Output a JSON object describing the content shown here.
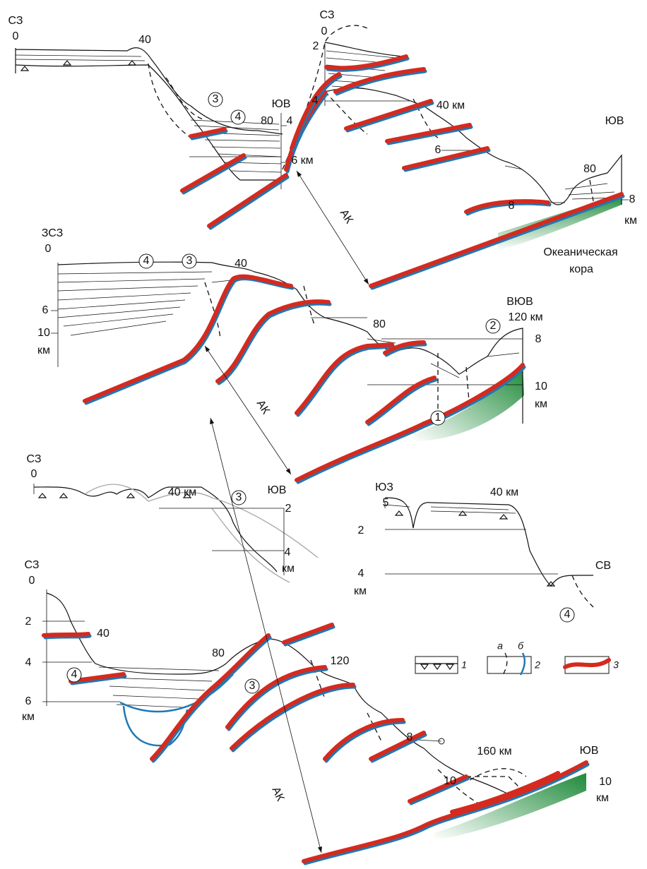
{
  "sections": [
    {
      "labels": [
        "СЗ",
        "0",
        "40",
        "3",
        "4",
        "ЮВ",
        "80",
        "4",
        "6 км"
      ]
    },
    {
      "labels": [
        "СЗ",
        "0",
        "2",
        "4",
        "40 км",
        "6",
        "8",
        "80",
        "ЮВ",
        "8",
        "км",
        "АК",
        "Океаническая",
        "кора"
      ]
    },
    {
      "labels": [
        "ЗСЗ",
        "0",
        "6",
        "10",
        "км",
        "4",
        "3",
        "40",
        "80",
        "ВЮВ",
        "120 км",
        "2",
        "8",
        "10",
        "км",
        "1",
        "АК"
      ]
    },
    {
      "labels": [
        "СЗ",
        "0",
        "40 км",
        "ЮВ",
        "3",
        "2",
        "4",
        "км"
      ]
    },
    {
      "labels": [
        "ЮЗ",
        "5",
        "40 км",
        "2",
        "4",
        "км",
        "СВ",
        "4"
      ]
    },
    {
      "labels": [
        "СЗ",
        "0",
        "2",
        "40",
        "4",
        "4",
        "6",
        "км",
        "80",
        "3",
        "120",
        "8",
        "160 км",
        "10",
        "ЮВ",
        "10",
        "км",
        "АК"
      ]
    }
  ],
  "legend": {
    "items": [
      "1",
      "а",
      "б",
      "2",
      "3"
    ]
  }
}
